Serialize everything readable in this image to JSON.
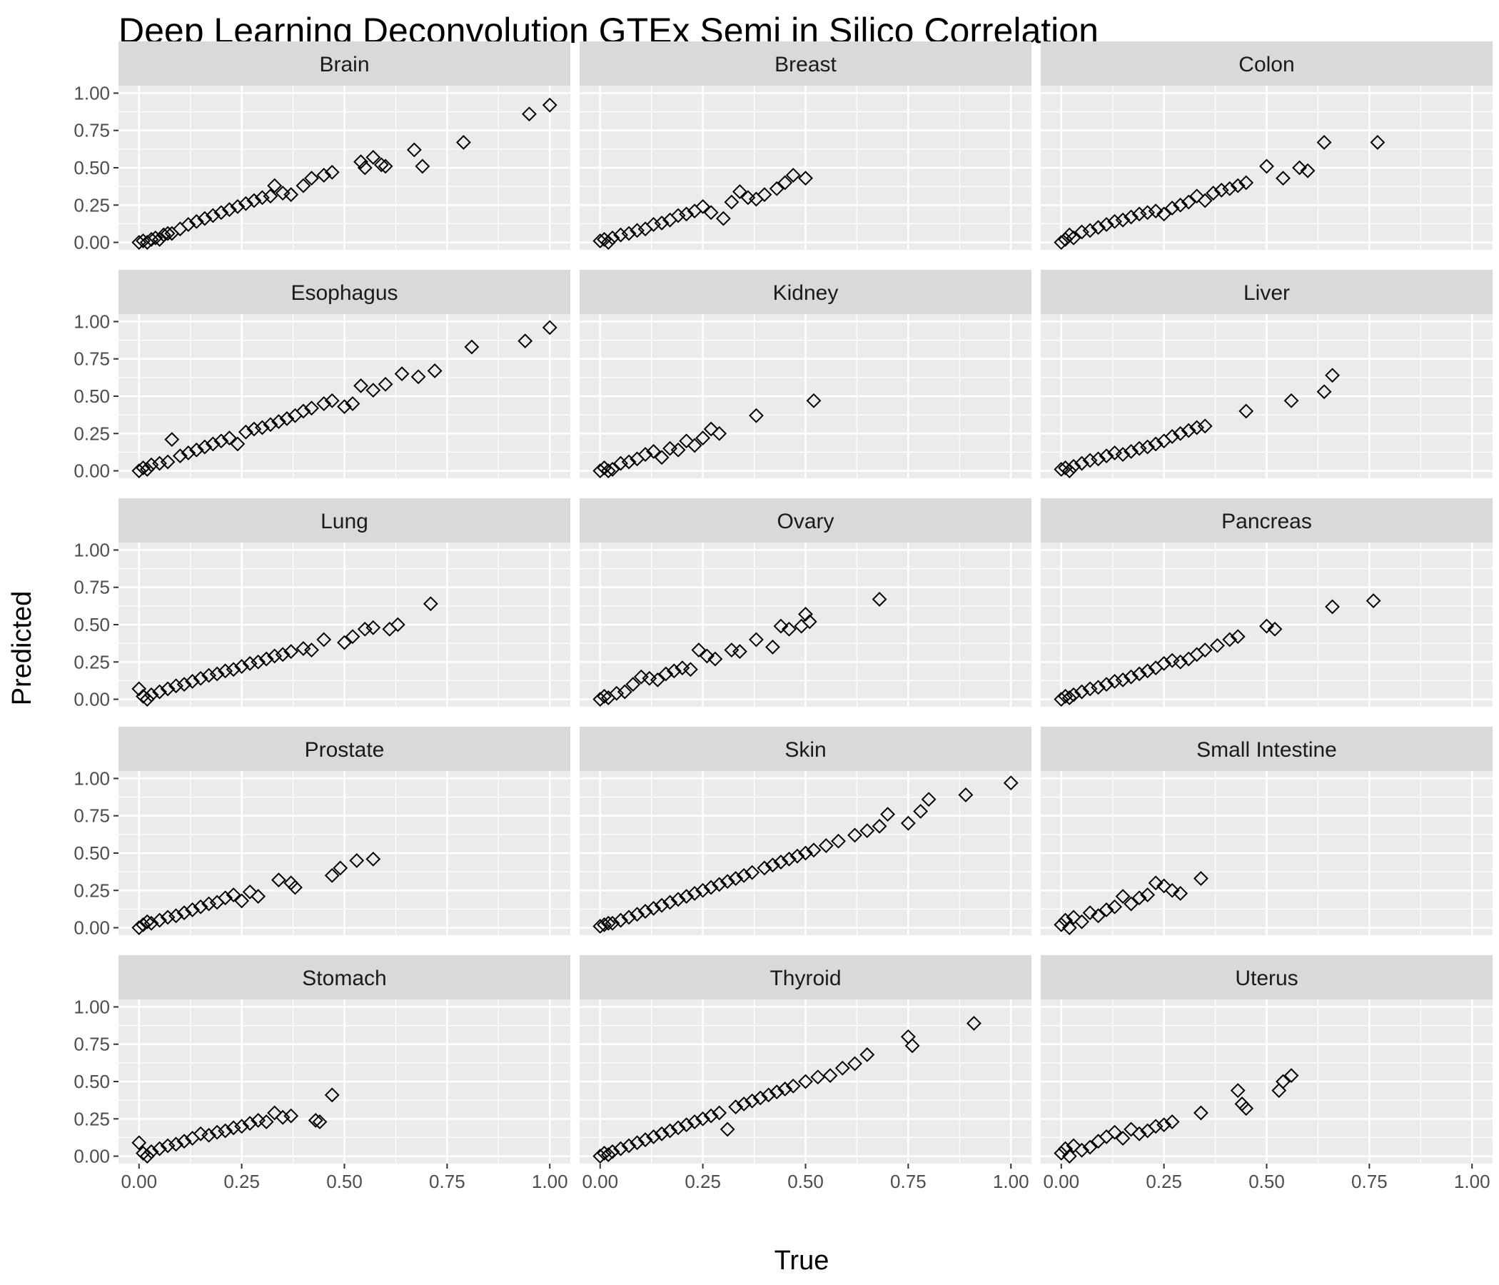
{
  "chart_data": {
    "type": "scatter",
    "title": "Deep Learning Deconvolution GTEx Semi in Silico Correlation",
    "xlabel": "True",
    "ylabel": "Predicted",
    "xlim": [
      -0.05,
      1.05
    ],
    "ylim": [
      -0.05,
      1.05
    ],
    "ticks": [
      0,
      0.25,
      0.5,
      0.75,
      1.0
    ],
    "tick_labels": [
      "0.00",
      "0.25",
      "0.50",
      "0.75",
      "1.00"
    ],
    "grid": true,
    "marker": "open-diamond",
    "colors": {
      "panel_bg": "#ebebeb",
      "strip_bg": "#d9d9d9",
      "grid": "#ffffff",
      "marker": "#000000"
    },
    "facets": [
      {
        "name": "Brain",
        "x": [
          0.0,
          0.01,
          0.02,
          0.03,
          0.04,
          0.05,
          0.06,
          0.07,
          0.08,
          0.1,
          0.12,
          0.14,
          0.16,
          0.18,
          0.2,
          0.22,
          0.24,
          0.26,
          0.28,
          0.3,
          0.32,
          0.33,
          0.35,
          0.37,
          0.4,
          0.42,
          0.45,
          0.47,
          0.54,
          0.55,
          0.57,
          0.59,
          0.6,
          0.67,
          0.69,
          0.79,
          0.95,
          1.0
        ],
        "y": [
          0.0,
          0.01,
          0.0,
          0.02,
          0.03,
          0.02,
          0.05,
          0.06,
          0.06,
          0.09,
          0.12,
          0.14,
          0.16,
          0.18,
          0.2,
          0.22,
          0.24,
          0.26,
          0.28,
          0.3,
          0.31,
          0.38,
          0.33,
          0.32,
          0.38,
          0.43,
          0.45,
          0.47,
          0.54,
          0.5,
          0.57,
          0.52,
          0.51,
          0.62,
          0.51,
          0.67,
          0.86,
          0.92
        ]
      },
      {
        "name": "Breast",
        "x": [
          0.0,
          0.01,
          0.02,
          0.03,
          0.05,
          0.07,
          0.09,
          0.11,
          0.13,
          0.15,
          0.17,
          0.19,
          0.21,
          0.23,
          0.25,
          0.27,
          0.3,
          0.32,
          0.34,
          0.36,
          0.38,
          0.4,
          0.43,
          0.45,
          0.47,
          0.5
        ],
        "y": [
          0.01,
          0.02,
          0.0,
          0.03,
          0.05,
          0.06,
          0.08,
          0.09,
          0.12,
          0.13,
          0.15,
          0.18,
          0.19,
          0.21,
          0.24,
          0.2,
          0.16,
          0.27,
          0.34,
          0.3,
          0.29,
          0.32,
          0.36,
          0.4,
          0.45,
          0.43
        ]
      },
      {
        "name": "Colon",
        "x": [
          0.0,
          0.01,
          0.02,
          0.03,
          0.05,
          0.07,
          0.09,
          0.11,
          0.13,
          0.15,
          0.17,
          0.19,
          0.21,
          0.23,
          0.25,
          0.27,
          0.29,
          0.31,
          0.33,
          0.35,
          0.37,
          0.39,
          0.41,
          0.43,
          0.45,
          0.5,
          0.54,
          0.58,
          0.6,
          0.64,
          0.77
        ],
        "y": [
          0.0,
          0.02,
          0.05,
          0.03,
          0.07,
          0.08,
          0.1,
          0.12,
          0.14,
          0.15,
          0.17,
          0.19,
          0.2,
          0.21,
          0.19,
          0.23,
          0.25,
          0.27,
          0.31,
          0.28,
          0.33,
          0.35,
          0.36,
          0.38,
          0.4,
          0.51,
          0.43,
          0.5,
          0.48,
          0.67,
          0.67
        ]
      },
      {
        "name": "Esophagus",
        "x": [
          0.0,
          0.01,
          0.02,
          0.03,
          0.05,
          0.07,
          0.08,
          0.1,
          0.12,
          0.14,
          0.16,
          0.18,
          0.2,
          0.22,
          0.24,
          0.26,
          0.28,
          0.3,
          0.32,
          0.34,
          0.36,
          0.38,
          0.4,
          0.42,
          0.45,
          0.47,
          0.5,
          0.52,
          0.54,
          0.57,
          0.6,
          0.64,
          0.68,
          0.72,
          0.81,
          0.94,
          1.0
        ],
        "y": [
          0.0,
          0.02,
          0.01,
          0.04,
          0.05,
          0.06,
          0.21,
          0.1,
          0.12,
          0.14,
          0.16,
          0.18,
          0.2,
          0.22,
          0.18,
          0.26,
          0.28,
          0.29,
          0.31,
          0.33,
          0.35,
          0.37,
          0.4,
          0.42,
          0.45,
          0.47,
          0.43,
          0.45,
          0.57,
          0.54,
          0.58,
          0.65,
          0.63,
          0.67,
          0.83,
          0.87,
          0.96
        ]
      },
      {
        "name": "Kidney",
        "x": [
          0.0,
          0.01,
          0.02,
          0.03,
          0.05,
          0.07,
          0.09,
          0.11,
          0.13,
          0.15,
          0.17,
          0.19,
          0.21,
          0.23,
          0.25,
          0.27,
          0.29,
          0.38,
          0.52
        ],
        "y": [
          0.0,
          0.02,
          0.0,
          0.01,
          0.05,
          0.06,
          0.08,
          0.11,
          0.13,
          0.09,
          0.15,
          0.14,
          0.2,
          0.17,
          0.22,
          0.28,
          0.25,
          0.37,
          0.47
        ]
      },
      {
        "name": "Liver",
        "x": [
          0.0,
          0.01,
          0.02,
          0.03,
          0.05,
          0.07,
          0.09,
          0.11,
          0.13,
          0.15,
          0.17,
          0.19,
          0.21,
          0.23,
          0.25,
          0.27,
          0.29,
          0.31,
          0.33,
          0.35,
          0.45,
          0.56,
          0.64,
          0.66
        ],
        "y": [
          0.01,
          0.02,
          0.0,
          0.03,
          0.05,
          0.07,
          0.08,
          0.1,
          0.12,
          0.11,
          0.13,
          0.15,
          0.16,
          0.18,
          0.2,
          0.23,
          0.25,
          0.27,
          0.29,
          0.3,
          0.4,
          0.47,
          0.53,
          0.64
        ]
      },
      {
        "name": "Lung",
        "x": [
          0.0,
          0.01,
          0.02,
          0.03,
          0.05,
          0.07,
          0.09,
          0.11,
          0.13,
          0.15,
          0.17,
          0.19,
          0.21,
          0.23,
          0.25,
          0.27,
          0.29,
          0.31,
          0.33,
          0.35,
          0.37,
          0.4,
          0.42,
          0.45,
          0.5,
          0.52,
          0.55,
          0.57,
          0.61,
          0.63,
          0.71
        ],
        "y": [
          0.07,
          0.02,
          0.0,
          0.03,
          0.05,
          0.07,
          0.09,
          0.1,
          0.12,
          0.14,
          0.16,
          0.17,
          0.19,
          0.2,
          0.22,
          0.24,
          0.25,
          0.27,
          0.29,
          0.3,
          0.32,
          0.34,
          0.33,
          0.4,
          0.38,
          0.42,
          0.47,
          0.48,
          0.47,
          0.5,
          0.64
        ]
      },
      {
        "name": "Ovary",
        "x": [
          0.0,
          0.01,
          0.02,
          0.04,
          0.06,
          0.08,
          0.1,
          0.12,
          0.14,
          0.16,
          0.18,
          0.2,
          0.22,
          0.24,
          0.26,
          0.28,
          0.32,
          0.34,
          0.38,
          0.42,
          0.44,
          0.46,
          0.49,
          0.5,
          0.51,
          0.68
        ],
        "y": [
          0.0,
          0.02,
          0.01,
          0.04,
          0.05,
          0.1,
          0.15,
          0.14,
          0.13,
          0.17,
          0.19,
          0.21,
          0.2,
          0.33,
          0.29,
          0.27,
          0.33,
          0.32,
          0.4,
          0.35,
          0.49,
          0.47,
          0.49,
          0.57,
          0.52,
          0.67
        ]
      },
      {
        "name": "Pancreas",
        "x": [
          0.0,
          0.01,
          0.02,
          0.03,
          0.05,
          0.07,
          0.09,
          0.11,
          0.13,
          0.15,
          0.17,
          0.19,
          0.21,
          0.23,
          0.25,
          0.27,
          0.29,
          0.31,
          0.33,
          0.35,
          0.38,
          0.41,
          0.43,
          0.5,
          0.52,
          0.66,
          0.76
        ],
        "y": [
          0.0,
          0.02,
          0.01,
          0.03,
          0.05,
          0.07,
          0.08,
          0.1,
          0.12,
          0.13,
          0.15,
          0.17,
          0.19,
          0.21,
          0.24,
          0.26,
          0.25,
          0.27,
          0.3,
          0.33,
          0.36,
          0.4,
          0.42,
          0.49,
          0.47,
          0.62,
          0.66
        ]
      },
      {
        "name": "Prostate",
        "x": [
          0.0,
          0.01,
          0.02,
          0.03,
          0.05,
          0.07,
          0.09,
          0.11,
          0.13,
          0.15,
          0.17,
          0.19,
          0.21,
          0.23,
          0.25,
          0.27,
          0.29,
          0.34,
          0.37,
          0.38,
          0.47,
          0.49,
          0.53,
          0.57
        ],
        "y": [
          0.0,
          0.02,
          0.04,
          0.03,
          0.05,
          0.07,
          0.08,
          0.1,
          0.12,
          0.14,
          0.16,
          0.17,
          0.2,
          0.22,
          0.18,
          0.24,
          0.21,
          0.32,
          0.3,
          0.27,
          0.35,
          0.4,
          0.45,
          0.46
        ]
      },
      {
        "name": "Skin",
        "x": [
          0.0,
          0.01,
          0.02,
          0.03,
          0.05,
          0.07,
          0.09,
          0.11,
          0.13,
          0.15,
          0.17,
          0.19,
          0.21,
          0.23,
          0.25,
          0.27,
          0.29,
          0.31,
          0.33,
          0.35,
          0.37,
          0.4,
          0.42,
          0.44,
          0.46,
          0.48,
          0.5,
          0.52,
          0.55,
          0.58,
          0.62,
          0.65,
          0.68,
          0.7,
          0.75,
          0.78,
          0.8,
          0.89,
          1.0
        ],
        "y": [
          0.01,
          0.02,
          0.03,
          0.03,
          0.05,
          0.07,
          0.09,
          0.11,
          0.13,
          0.15,
          0.17,
          0.19,
          0.21,
          0.23,
          0.25,
          0.27,
          0.29,
          0.31,
          0.33,
          0.35,
          0.37,
          0.4,
          0.42,
          0.44,
          0.46,
          0.48,
          0.5,
          0.52,
          0.55,
          0.58,
          0.62,
          0.65,
          0.68,
          0.76,
          0.7,
          0.78,
          0.86,
          0.89,
          0.97
        ]
      },
      {
        "name": "Small Intestine",
        "x": [
          0.0,
          0.01,
          0.02,
          0.03,
          0.05,
          0.07,
          0.09,
          0.11,
          0.13,
          0.15,
          0.17,
          0.19,
          0.21,
          0.23,
          0.25,
          0.27,
          0.29,
          0.34
        ],
        "y": [
          0.02,
          0.05,
          0.0,
          0.07,
          0.04,
          0.1,
          0.08,
          0.12,
          0.14,
          0.21,
          0.16,
          0.2,
          0.22,
          0.3,
          0.28,
          0.25,
          0.23,
          0.33
        ]
      },
      {
        "name": "Stomach",
        "x": [
          0.0,
          0.01,
          0.02,
          0.03,
          0.05,
          0.07,
          0.09,
          0.11,
          0.13,
          0.15,
          0.17,
          0.19,
          0.21,
          0.23,
          0.25,
          0.27,
          0.29,
          0.31,
          0.33,
          0.35,
          0.37,
          0.43,
          0.44,
          0.47
        ],
        "y": [
          0.09,
          0.02,
          0.0,
          0.03,
          0.05,
          0.07,
          0.08,
          0.1,
          0.12,
          0.15,
          0.14,
          0.16,
          0.17,
          0.19,
          0.2,
          0.22,
          0.24,
          0.23,
          0.29,
          0.26,
          0.27,
          0.24,
          0.23,
          0.41
        ]
      },
      {
        "name": "Thyroid",
        "x": [
          0.0,
          0.01,
          0.02,
          0.03,
          0.05,
          0.07,
          0.09,
          0.11,
          0.13,
          0.15,
          0.17,
          0.19,
          0.21,
          0.23,
          0.25,
          0.27,
          0.29,
          0.31,
          0.33,
          0.35,
          0.37,
          0.39,
          0.41,
          0.43,
          0.45,
          0.47,
          0.5,
          0.53,
          0.56,
          0.59,
          0.62,
          0.65,
          0.75,
          0.76,
          0.91
        ],
        "y": [
          0.0,
          0.02,
          0.01,
          0.03,
          0.05,
          0.07,
          0.09,
          0.11,
          0.13,
          0.15,
          0.17,
          0.19,
          0.21,
          0.23,
          0.25,
          0.27,
          0.29,
          0.18,
          0.33,
          0.35,
          0.37,
          0.39,
          0.41,
          0.43,
          0.45,
          0.47,
          0.5,
          0.53,
          0.54,
          0.59,
          0.62,
          0.68,
          0.8,
          0.74,
          0.89
        ]
      },
      {
        "name": "Uterus",
        "x": [
          0.0,
          0.01,
          0.02,
          0.03,
          0.05,
          0.07,
          0.09,
          0.11,
          0.13,
          0.15,
          0.17,
          0.19,
          0.21,
          0.23,
          0.25,
          0.27,
          0.34,
          0.43,
          0.44,
          0.45,
          0.53,
          0.54,
          0.56
        ],
        "y": [
          0.02,
          0.05,
          0.0,
          0.07,
          0.04,
          0.06,
          0.1,
          0.13,
          0.16,
          0.12,
          0.18,
          0.15,
          0.17,
          0.2,
          0.21,
          0.23,
          0.29,
          0.44,
          0.35,
          0.32,
          0.44,
          0.5,
          0.54
        ]
      }
    ]
  }
}
